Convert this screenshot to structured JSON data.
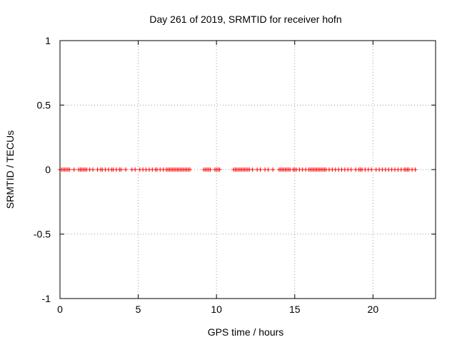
{
  "chart_data": {
    "type": "scatter",
    "title": "Day 261 of 2019, SRMTID for receiver hofn",
    "xlabel": "GPS time / hours",
    "ylabel": "SRMTID / TECUs",
    "xlim": [
      0,
      24
    ],
    "ylim": [
      -1,
      1
    ],
    "xticks": [
      0,
      5,
      10,
      15,
      20
    ],
    "yticks": [
      -1,
      -0.5,
      0,
      0.5,
      1
    ],
    "xtick_labels": [
      "0",
      "5",
      "10",
      "15",
      "20"
    ],
    "ytick_labels": [
      "-1",
      "-0.5",
      "0",
      "0.5",
      "1"
    ],
    "grid": true,
    "marker": "+",
    "marker_color": "#ff0000",
    "series": [
      {
        "name": "SRMTID",
        "x": [
          0.0,
          0.1,
          0.2,
          0.3,
          0.4,
          0.5,
          0.6,
          0.9,
          1.2,
          1.3,
          1.4,
          1.5,
          1.6,
          1.7,
          1.9,
          2.1,
          2.4,
          2.6,
          2.7,
          2.9,
          3.1,
          3.3,
          3.4,
          3.6,
          3.8,
          3.9,
          4.2,
          4.6,
          4.8,
          5.1,
          5.3,
          5.5,
          5.7,
          5.9,
          6.1,
          6.2,
          6.4,
          6.6,
          6.8,
          6.9,
          7.0,
          7.1,
          7.2,
          7.3,
          7.4,
          7.5,
          7.6,
          7.7,
          7.8,
          7.9,
          8.0,
          8.1,
          8.2,
          8.3,
          9.2,
          9.3,
          9.4,
          9.5,
          9.6,
          9.9,
          10.0,
          10.1,
          10.2,
          11.1,
          11.2,
          11.3,
          11.4,
          11.5,
          11.6,
          11.7,
          11.8,
          11.9,
          12.0,
          12.1,
          12.3,
          12.6,
          12.8,
          13.1,
          13.3,
          13.6,
          14.0,
          14.1,
          14.2,
          14.3,
          14.4,
          14.5,
          14.6,
          14.7,
          14.9,
          15.0,
          15.1,
          15.3,
          15.5,
          15.7,
          15.9,
          16.0,
          16.1,
          16.2,
          16.3,
          16.4,
          16.5,
          16.6,
          16.7,
          16.8,
          16.9,
          17.0,
          17.2,
          17.4,
          17.6,
          17.8,
          18.0,
          18.2,
          18.4,
          18.6,
          18.9,
          19.1,
          19.2,
          19.3,
          19.5,
          19.7,
          19.9,
          20.2,
          20.4,
          20.6,
          20.8,
          21.0,
          21.2,
          21.4,
          21.6,
          21.8,
          22.0,
          22.1,
          22.2,
          22.3,
          22.5,
          22.7
        ],
        "y": [
          0,
          0,
          0,
          0,
          0,
          0,
          0,
          0,
          0,
          0,
          0,
          0,
          0,
          0,
          0,
          0,
          0,
          0,
          0,
          0,
          0,
          0,
          0,
          0,
          0,
          0,
          0,
          0,
          0,
          0,
          0,
          0,
          0,
          0,
          0,
          0,
          0,
          0,
          0,
          0,
          0,
          0,
          0,
          0,
          0,
          0,
          0,
          0,
          0,
          0,
          0,
          0,
          0,
          0,
          0,
          0,
          0,
          0,
          0,
          0,
          0,
          0,
          0,
          0,
          0,
          0,
          0,
          0,
          0,
          0,
          0,
          0,
          0,
          0,
          0,
          0,
          0,
          0,
          0,
          0,
          0,
          0,
          0,
          0,
          0,
          0,
          0,
          0,
          0,
          0,
          0,
          0,
          0,
          0,
          0,
          0,
          0,
          0,
          0,
          0,
          0,
          0,
          0,
          0,
          0,
          0,
          0,
          0,
          0,
          0,
          0,
          0,
          0,
          0,
          0,
          0,
          0,
          0,
          0,
          0,
          0,
          0,
          0,
          0,
          0,
          0,
          0,
          0,
          0,
          0,
          0,
          0,
          0,
          0,
          0,
          0
        ]
      }
    ]
  }
}
